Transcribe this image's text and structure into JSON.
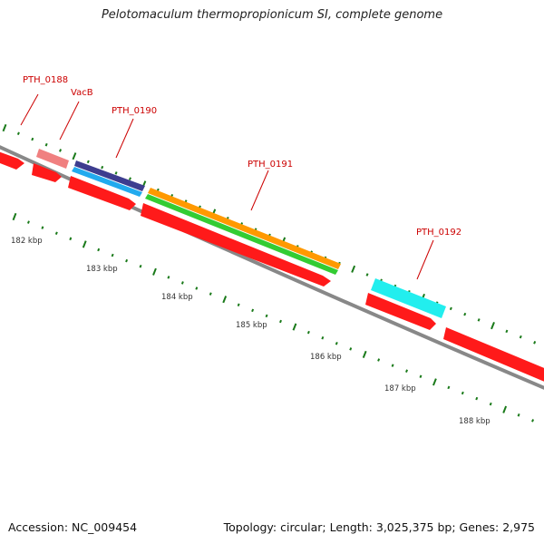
{
  "title": "Pelotomaculum thermopropionicum SI, complete genome",
  "accession": "Accession: NC_009454",
  "topology": "Topology: circular; Length: 3,025,375 bp; Genes: 2,975",
  "colors": {
    "backbone": "#888888",
    "label": "#cc0000",
    "tick": "#1a7a1a",
    "gene_red": "#ff1a1a",
    "gene_pink": "#f08080",
    "gene_navy": "#3d3d8f",
    "gene_blue": "#22aaee",
    "gene_orange": "#ff9900",
    "gene_green": "#33cc33",
    "gene_cyan": "#22eeee"
  },
  "scale_labels": [
    "182 kbp",
    "183 kbp",
    "184 kbp",
    "185 kbp",
    "186 kbp",
    "187 kbp",
    "188 kbp"
  ],
  "gene_labels": [
    "PTH_0188",
    "VacB",
    "PTH_0190",
    "PTH_0191",
    "PTH_0192"
  ]
}
